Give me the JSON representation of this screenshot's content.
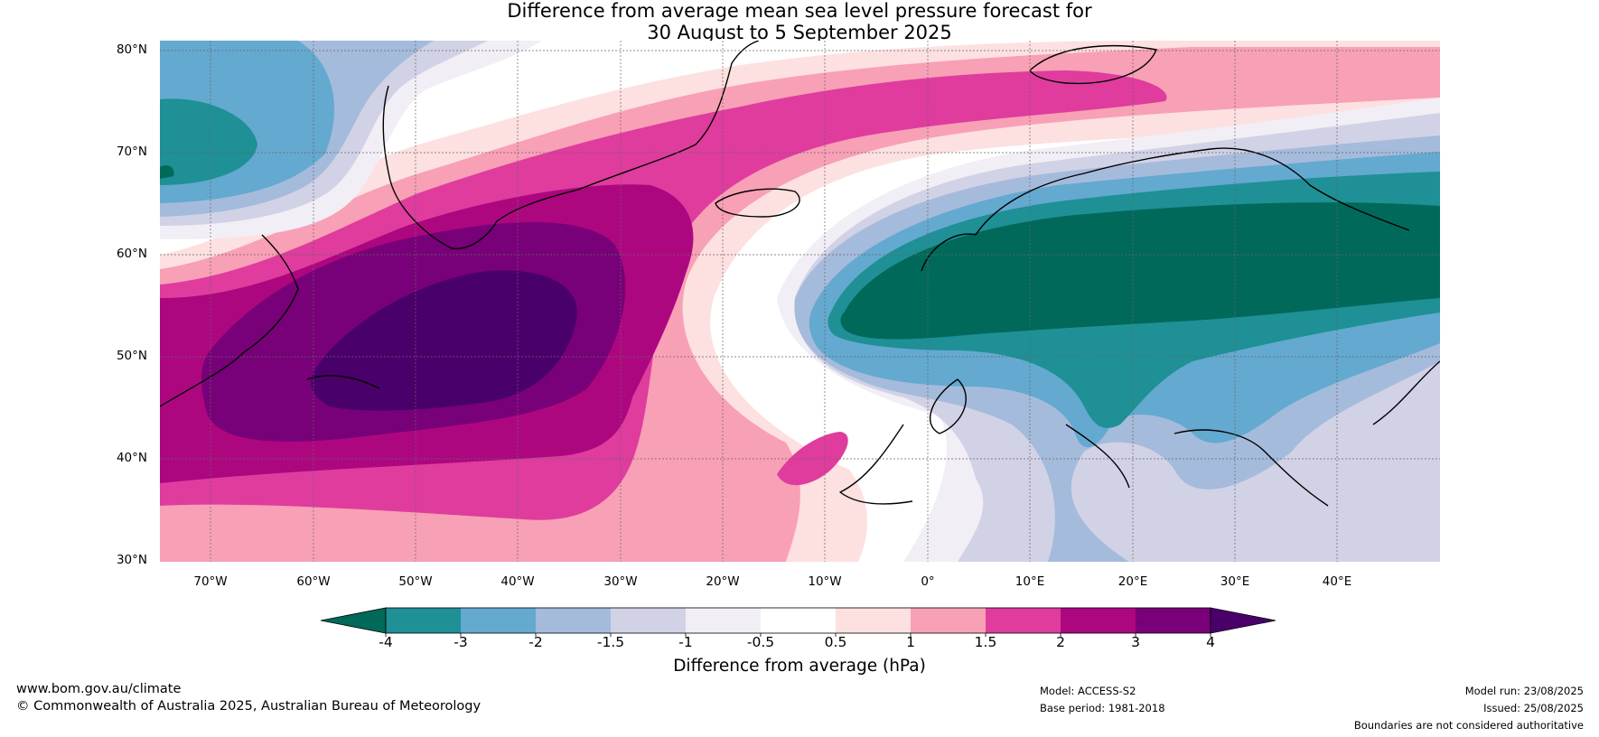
{
  "title": {
    "line1": "Difference from average mean sea level pressure forecast for",
    "line2": "30 August to 5 September 2025"
  },
  "map": {
    "lat_labels": [
      "80°N",
      "70°N",
      "60°N",
      "50°N",
      "40°N",
      "30°N"
    ],
    "lon_labels": [
      "70°W",
      "60°W",
      "50°W",
      "40°W",
      "30°W",
      "20°W",
      "10°W",
      "0°",
      "10°E",
      "20°E",
      "30°E",
      "40°E"
    ],
    "extent": {
      "lon": [
        -75,
        50
      ],
      "lat": [
        30,
        81
      ]
    },
    "gridlines": true
  },
  "colorbar": {
    "label": "Difference from average (hPa)",
    "ticks": [
      "-4",
      "-3",
      "-2",
      "-1.5",
      "-1",
      "-0.5",
      "0.5",
      "1",
      "1.5",
      "2",
      "3",
      "4"
    ],
    "colors": [
      "#00695a",
      "#1e9096",
      "#64a9d0",
      "#a5bbdb",
      "#d2d2e6",
      "#f2eef5",
      "#ffffff",
      "#fde0e0",
      "#f8a0b6",
      "#df3c9e",
      "#ad0780",
      "#780078",
      "#4a006b"
    ]
  },
  "footer": {
    "website": "www.bom.gov.au/climate",
    "copyright": "© Commonwealth of Australia 2025, Australian Bureau of Meteorology",
    "model": "Model: ACCESS-S2",
    "base_period": "Base period: 1981-2018",
    "model_run": "Model run: 23/08/2025",
    "issued": "Issued: 25/08/2025",
    "disclaimer": "Boundaries are not considered authoritative"
  }
}
